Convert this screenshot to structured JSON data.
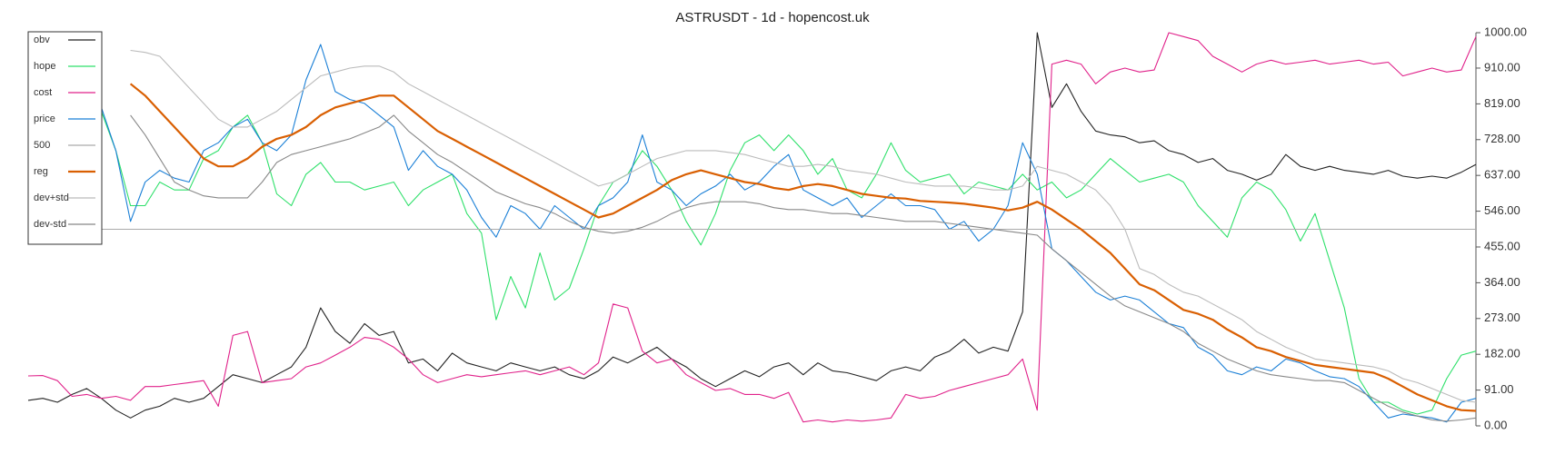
{
  "chart_data": {
    "type": "line",
    "title": "ASTRUSDT - 1d - hopencost.uk",
    "legend": "upper left",
    "ylim": [
      0,
      1000
    ],
    "yticks": [
      {
        "value": 0,
        "label": "0.00"
      },
      {
        "value": 91,
        "label": "91.00"
      },
      {
        "value": 182,
        "label": "182.00"
      },
      {
        "value": 273,
        "label": "273.00"
      },
      {
        "value": 364,
        "label": "364.00"
      },
      {
        "value": 455,
        "label": "455.00"
      },
      {
        "value": 546,
        "label": "546.00"
      },
      {
        "value": 637,
        "label": "637.00"
      },
      {
        "value": 728,
        "label": "728.00"
      },
      {
        "value": 819,
        "label": "819.00"
      },
      {
        "value": 910,
        "label": "910.00"
      },
      {
        "value": 1000,
        "label": "1000.00"
      }
    ],
    "series": [
      {
        "name": "obv",
        "color": "#222222",
        "values": [
          65,
          70,
          60,
          80,
          95,
          70,
          40,
          20,
          40,
          50,
          70,
          60,
          70,
          100,
          130,
          120,
          110,
          130,
          150,
          200,
          300,
          240,
          210,
          260,
          230,
          240,
          160,
          170,
          140,
          185,
          160,
          150,
          140,
          160,
          150,
          140,
          150,
          130,
          120,
          140,
          175,
          160,
          180,
          200,
          170,
          150,
          120,
          100,
          120,
          140,
          125,
          150,
          160,
          130,
          160,
          140,
          135,
          125,
          115,
          140,
          150,
          140,
          175,
          190,
          220,
          185,
          200,
          190,
          290,
          1000,
          810,
          870,
          800,
          750,
          740,
          735,
          720,
          725,
          700,
          690,
          670,
          680,
          650,
          640,
          625,
          640,
          690,
          660,
          650,
          660,
          650,
          645,
          640,
          650,
          635,
          630,
          635,
          630,
          645,
          665
        ]
      },
      {
        "name": "hope",
        "color": "#2ee06a",
        "values": [
          null,
          null,
          null,
          null,
          null,
          800,
          700,
          560,
          560,
          620,
          600,
          600,
          680,
          700,
          760,
          790,
          720,
          590,
          560,
          640,
          670,
          620,
          620,
          600,
          610,
          620,
          560,
          600,
          620,
          640,
          540,
          490,
          270,
          380,
          300,
          440,
          320,
          350,
          450,
          560,
          620,
          640,
          700,
          660,
          600,
          520,
          460,
          540,
          650,
          720,
          740,
          700,
          740,
          700,
          640,
          680,
          600,
          580,
          640,
          720,
          650,
          620,
          630,
          640,
          590,
          620,
          610,
          600,
          640,
          600,
          620,
          580,
          600,
          640,
          680,
          650,
          620,
          630,
          640,
          620,
          560,
          520,
          480,
          580,
          620,
          600,
          550,
          470,
          540,
          420,
          300,
          120,
          60,
          60,
          40,
          30,
          40,
          120,
          180,
          190
        ]
      },
      {
        "name": "cost",
        "color": "#e0218a",
        "values": [
          127,
          128,
          115,
          75,
          80,
          70,
          75,
          65,
          100,
          100,
          105,
          110,
          115,
          50,
          230,
          240,
          110,
          115,
          120,
          150,
          160,
          180,
          200,
          225,
          220,
          200,
          170,
          130,
          110,
          120,
          130,
          125,
          130,
          135,
          140,
          130,
          140,
          150,
          130,
          160,
          310,
          300,
          190,
          160,
          170,
          130,
          110,
          90,
          95,
          80,
          80,
          70,
          85,
          10,
          15,
          10,
          15,
          12,
          15,
          20,
          80,
          70,
          75,
          90,
          100,
          110,
          120,
          130,
          170,
          40,
          920,
          930,
          920,
          870,
          900,
          910,
          900,
          905,
          1000,
          990,
          980,
          940,
          920,
          900,
          920,
          930,
          920,
          925,
          930,
          920,
          925,
          930,
          920,
          925,
          890,
          900,
          910,
          900,
          905,
          990
        ]
      },
      {
        "name": "price",
        "color": "#1a7fd6",
        "values": [
          null,
          null,
          null,
          null,
          null,
          810,
          700,
          520,
          620,
          650,
          630,
          620,
          700,
          720,
          760,
          780,
          720,
          700,
          740,
          880,
          970,
          850,
          830,
          820,
          790,
          760,
          650,
          700,
          660,
          640,
          600,
          530,
          480,
          560,
          540,
          500,
          560,
          530,
          500,
          560,
          580,
          620,
          740,
          620,
          600,
          560,
          590,
          610,
          640,
          600,
          620,
          660,
          690,
          600,
          580,
          560,
          580,
          530,
          560,
          590,
          560,
          560,
          550,
          500,
          520,
          470,
          500,
          560,
          720,
          640,
          450,
          420,
          380,
          340,
          320,
          330,
          320,
          290,
          260,
          250,
          200,
          180,
          140,
          130,
          150,
          140,
          170,
          160,
          140,
          125,
          120,
          100,
          60,
          20,
          30,
          25,
          20,
          10,
          60,
          70
        ]
      },
      {
        "name": "500",
        "color": "#aaaaaa",
        "values": [
          500,
          500,
          500,
          500,
          500,
          500,
          500,
          500,
          500,
          500,
          500,
          500,
          500,
          500,
          500,
          500,
          500,
          500,
          500,
          500,
          500,
          500,
          500,
          500,
          500,
          500,
          500,
          500,
          500,
          500,
          500,
          500,
          500,
          500,
          500,
          500,
          500,
          500,
          500,
          500,
          500,
          500,
          500,
          500,
          500,
          500,
          500,
          500,
          500,
          500,
          500,
          500,
          500,
          500,
          500,
          500,
          500,
          500,
          500,
          500,
          500,
          500,
          500,
          500,
          500,
          500,
          500,
          500,
          500,
          500,
          500,
          500,
          500,
          500,
          500,
          500,
          500,
          500,
          500,
          500,
          500,
          500,
          500,
          500,
          500,
          500,
          500,
          500,
          500,
          500,
          500,
          500,
          500,
          500,
          500,
          500,
          500,
          500,
          500,
          500
        ]
      },
      {
        "name": "reg",
        "color": "#d95f02",
        "values": [
          null,
          null,
          null,
          null,
          null,
          null,
          null,
          870,
          840,
          800,
          760,
          720,
          680,
          660,
          660,
          680,
          710,
          730,
          740,
          760,
          790,
          810,
          820,
          830,
          840,
          840,
          810,
          780,
          750,
          730,
          710,
          690,
          670,
          650,
          630,
          610,
          590,
          570,
          550,
          530,
          540,
          560,
          580,
          600,
          625,
          640,
          650,
          640,
          630,
          620,
          615,
          605,
          600,
          610,
          615,
          610,
          600,
          590,
          585,
          580,
          578,
          572,
          570,
          568,
          565,
          560,
          555,
          548,
          555,
          570,
          550,
          525,
          500,
          470,
          440,
          400,
          360,
          345,
          320,
          295,
          285,
          270,
          245,
          225,
          200,
          190,
          175,
          165,
          155,
          150,
          145,
          140,
          135,
          120,
          100,
          80,
          65,
          50,
          40,
          38
        ]
      },
      {
        "name": "dev+std",
        "color": "#bbbbbb",
        "values": [
          null,
          null,
          null,
          null,
          null,
          null,
          null,
          955,
          950,
          940,
          900,
          860,
          820,
          780,
          760,
          760,
          780,
          800,
          830,
          860,
          890,
          900,
          910,
          915,
          915,
          900,
          870,
          850,
          830,
          810,
          790,
          770,
          750,
          730,
          710,
          690,
          670,
          650,
          630,
          610,
          620,
          640,
          660,
          680,
          690,
          700,
          700,
          700,
          695,
          690,
          680,
          670,
          660,
          660,
          665,
          660,
          650,
          645,
          640,
          630,
          620,
          615,
          610,
          610,
          610,
          605,
          600,
          600,
          610,
          660,
          650,
          640,
          620,
          600,
          560,
          500,
          400,
          385,
          360,
          340,
          330,
          310,
          290,
          270,
          240,
          220,
          200,
          185,
          170,
          165,
          160,
          155,
          150,
          140,
          120,
          110,
          95,
          80,
          65,
          60
        ]
      },
      {
        "name": "dev-std",
        "color": "#888888",
        "values": [
          null,
          null,
          null,
          null,
          null,
          null,
          null,
          790,
          740,
          680,
          620,
          600,
          585,
          580,
          580,
          580,
          620,
          670,
          690,
          700,
          710,
          720,
          730,
          745,
          760,
          790,
          750,
          720,
          690,
          670,
          645,
          620,
          595,
          580,
          565,
          555,
          540,
          520,
          505,
          495,
          490,
          495,
          505,
          520,
          540,
          555,
          565,
          570,
          570,
          570,
          565,
          555,
          550,
          550,
          545,
          540,
          540,
          535,
          530,
          525,
          520,
          520,
          520,
          515,
          510,
          505,
          500,
          495,
          490,
          485,
          450,
          420,
          390,
          360,
          330,
          305,
          290,
          275,
          260,
          240,
          210,
          190,
          170,
          155,
          140,
          130,
          125,
          120,
          115,
          115,
          110,
          90,
          70,
          50,
          35,
          25,
          15,
          12,
          15,
          20
        ]
      }
    ]
  }
}
